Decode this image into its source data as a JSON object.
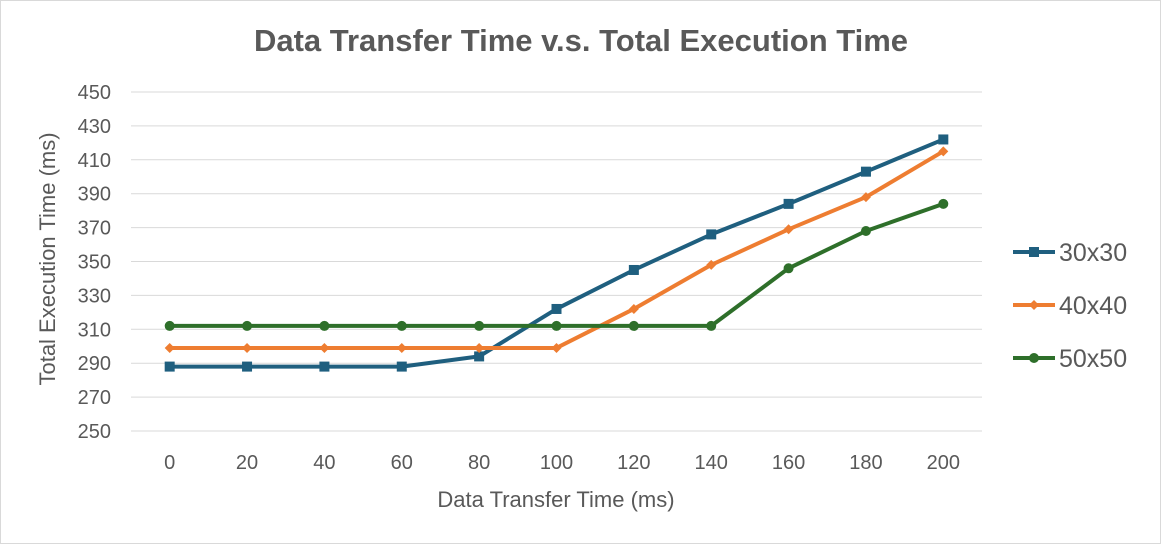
{
  "chart_data": {
    "type": "line",
    "title": "Data Transfer Time v.s. Total Execution Time",
    "xlabel": "Data Transfer Time (ms)",
    "ylabel": "Total Execution Time (ms)",
    "x": [
      0,
      20,
      40,
      60,
      80,
      100,
      120,
      140,
      160,
      180,
      200
    ],
    "xlim": [
      0,
      200
    ],
    "ylim": [
      250,
      450
    ],
    "yticks": [
      250,
      270,
      290,
      310,
      330,
      350,
      370,
      390,
      410,
      430,
      450
    ],
    "grid": true,
    "legend_position": "right",
    "series": [
      {
        "name": "30x30",
        "color": "#1f5f7f",
        "marker": "square",
        "values": [
          288,
          288,
          288,
          288,
          294,
          322,
          345,
          366,
          384,
          403,
          422
        ]
      },
      {
        "name": "40x40",
        "color": "#ee7d31",
        "marker": "diamond",
        "values": [
          299,
          299,
          299,
          299,
          299,
          299,
          322,
          348,
          369,
          388,
          415
        ]
      },
      {
        "name": "50x50",
        "color": "#2e6f2a",
        "marker": "circle",
        "values": [
          312,
          312,
          312,
          312,
          312,
          312,
          312,
          312,
          346,
          368,
          384
        ]
      }
    ]
  }
}
